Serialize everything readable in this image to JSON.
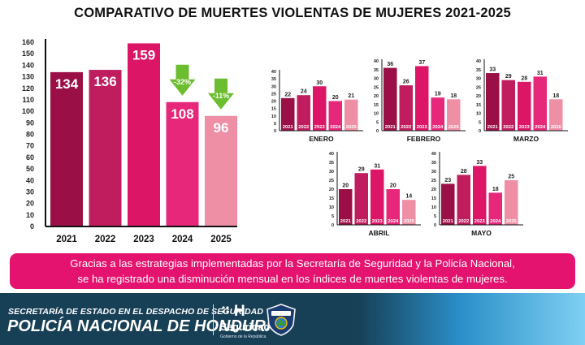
{
  "title": "COMPARATIVO DE MUERTES VIOLENTAS DE MUJERES 2021-2025",
  "colors": [
    "#9b0f47",
    "#c01d5e",
    "#dd1567",
    "#e7287a",
    "#ef8fa6"
  ],
  "chart_data": [
    {
      "type": "bar",
      "title": "",
      "categories": [
        "2021",
        "2022",
        "2023",
        "2024",
        "2025"
      ],
      "values": [
        134,
        136,
        159,
        108,
        96
      ],
      "ylim": [
        0,
        160
      ],
      "yticks": [
        0,
        10,
        20,
        30,
        40,
        50,
        60,
        70,
        80,
        90,
        100,
        110,
        120,
        130,
        140,
        150,
        160
      ],
      "annotations": [
        {
          "category": "2024",
          "text": "-32%"
        },
        {
          "category": "2025",
          "text": "-11%"
        }
      ]
    },
    {
      "type": "bar",
      "title": "ENERO",
      "categories": [
        "2021",
        "2022",
        "2023",
        "2024",
        "2025"
      ],
      "values": [
        22,
        24,
        30,
        20,
        21
      ],
      "ylim": [
        0,
        40
      ],
      "yticks": [
        0,
        5,
        10,
        15,
        20,
        25,
        30,
        35,
        40
      ]
    },
    {
      "type": "bar",
      "title": "FEBRERO",
      "categories": [
        "2021",
        "2022",
        "2023",
        "2024",
        "2025"
      ],
      "values": [
        36,
        26,
        37,
        19,
        18
      ],
      "ylim": [
        0,
        40
      ],
      "yticks": [
        0,
        5,
        10,
        15,
        20,
        25,
        30,
        35,
        40
      ]
    },
    {
      "type": "bar",
      "title": "MARZO",
      "categories": [
        "2021",
        "2022",
        "2023",
        "2024",
        "2025"
      ],
      "values": [
        33,
        29,
        28,
        31,
        18
      ],
      "ylim": [
        0,
        40
      ],
      "yticks": [
        0,
        5,
        10,
        15,
        20,
        25,
        30,
        35,
        40
      ]
    },
    {
      "type": "bar",
      "title": "ABRIL",
      "categories": [
        "2021",
        "2022",
        "2023",
        "2024",
        "2025"
      ],
      "values": [
        20,
        29,
        31,
        20,
        14
      ],
      "ylim": [
        0,
        40
      ],
      "yticks": [
        0,
        5,
        10,
        15,
        20,
        25,
        30,
        35,
        40
      ]
    },
    {
      "type": "bar",
      "title": "MAYO",
      "categories": [
        "2021",
        "2022",
        "2023",
        "2024",
        "2025"
      ],
      "values": [
        23,
        28,
        33,
        18,
        25
      ],
      "ylim": [
        0,
        40
      ],
      "yticks": [
        0,
        5,
        10,
        15,
        20,
        25,
        30,
        35,
        40
      ]
    }
  ],
  "banner": {
    "line1": "Gracias a las estrategias implementadas por la Secretaría de Seguridad y la Policía Nacional,",
    "line2": "se ha registrado una disminución mensual en los índices de muertes violentas de mujeres."
  },
  "footer": {
    "line1": "SECRETARÍA DE ESTADO EN EL DESPACHO DE SEGURIDAD",
    "line2": "POLICÍA NACIONAL DE HONDURAS",
    "logo_mark": "H",
    "logo_text": "Seguridad",
    "logo_sub": "Gobierno de la República"
  }
}
